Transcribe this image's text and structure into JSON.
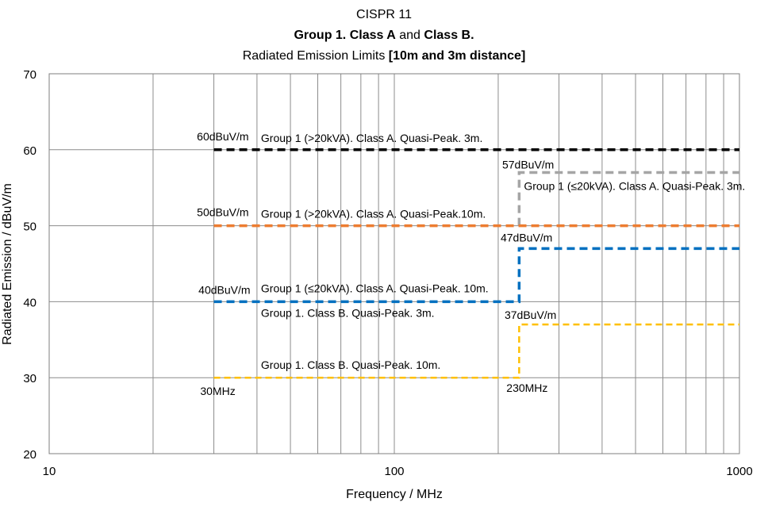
{
  "chart_data": {
    "type": "line",
    "title_lines": [
      [
        {
          "text": "CISPR 11",
          "bold": false
        }
      ],
      [
        {
          "text": "Group 1. Class A",
          "bold": true
        },
        {
          "text": " and ",
          "bold": false
        },
        {
          "text": "Class B.",
          "bold": true
        }
      ],
      [
        {
          "text": "Radiated Emission Limits ",
          "bold": false
        },
        {
          "text": "[10m and 3m distance]",
          "bold": true
        }
      ]
    ],
    "xlabel": "Frequency / MHz",
    "ylabel": "Radiated Emission / dBuV/m",
    "x_scale": "log",
    "xlim": [
      10,
      1000
    ],
    "ylim": [
      20,
      70
    ],
    "x_ticks": [
      10,
      100,
      1000
    ],
    "y_ticks": [
      20,
      30,
      40,
      50,
      60,
      70
    ],
    "grid": true,
    "series": [
      {
        "color": "#000000",
        "width": 3.5,
        "dash": "10,6",
        "points": [
          [
            30,
            60
          ],
          [
            1000,
            60
          ]
        ]
      },
      {
        "color": "#a5a5a5",
        "width": 3.5,
        "dash": "10,6",
        "points": [
          [
            230,
            50
          ],
          [
            230,
            57
          ],
          [
            1000,
            57
          ]
        ]
      },
      {
        "color": "#ed7d31",
        "width": 3.5,
        "dash": "10,6",
        "points": [
          [
            30,
            50
          ],
          [
            1000,
            50
          ]
        ]
      },
      {
        "color": "#0070c0",
        "width": 3.5,
        "dash": "10,6",
        "points": [
          [
            30,
            40
          ],
          [
            230,
            40
          ],
          [
            230,
            47
          ],
          [
            1000,
            47
          ]
        ]
      },
      {
        "color": "#ffc000",
        "width": 2.5,
        "dash": "8,5",
        "points": [
          [
            30,
            30
          ],
          [
            230,
            30
          ],
          [
            230,
            37
          ],
          [
            1000,
            37
          ]
        ]
      }
    ],
    "annotations": [
      {
        "text": "60dBuV/m",
        "x": 30,
        "y": 60,
        "align": "end",
        "dy": -12,
        "dx": 44
      },
      {
        "text": "Group 1 (>20kVA). Class A. Quasi-Peak. 3m.",
        "x": 40,
        "y": 60,
        "align": "start",
        "dy": -10,
        "dx": 5
      },
      {
        "text": "57dBuV/m",
        "x": 230,
        "y": 57,
        "align": "end",
        "dy": -5,
        "dx": 44
      },
      {
        "text": "Group 1 (≤20kVA). Class A. Quasi-Peak. 3m.",
        "x": 230,
        "y": 57,
        "align": "start",
        "dy": 22,
        "dx": 6
      },
      {
        "text": "50dBuV/m",
        "x": 30,
        "y": 50,
        "align": "end",
        "dy": -12,
        "dx": 44
      },
      {
        "text": "Group 1 (>20kVA). Class A. Quasi-Peak.10m.",
        "x": 40,
        "y": 50,
        "align": "start",
        "dy": -10,
        "dx": 5
      },
      {
        "text": "47dBuV/m",
        "x": 230,
        "y": 47,
        "align": "end",
        "dy": -9,
        "dx": 42
      },
      {
        "text": "40dBuV/m",
        "x": 30,
        "y": 40,
        "align": "end",
        "dy": -10,
        "dx": 46
      },
      {
        "text": "Group 1 (≤20kVA). Class A. Quasi-Peak. 10m.",
        "x": 40,
        "y": 40,
        "align": "start",
        "dy": -12,
        "dx": 5
      },
      {
        "text": "Group 1. Class B. Quasi-Peak. 3m.",
        "x": 40,
        "y": 40,
        "align": "start",
        "dy": 19,
        "dx": 5
      },
      {
        "text": "37dBuV/m",
        "x": 230,
        "y": 37,
        "align": "end",
        "dy": -7,
        "dx": 47
      },
      {
        "text": "Group 1. Class B. Quasi-Peak. 10m.",
        "x": 40,
        "y": 30,
        "align": "start",
        "dy": -11,
        "dx": 5
      },
      {
        "text": "30MHz",
        "x": 30,
        "y": 30,
        "align": "middle",
        "dy": 22,
        "dx": 5
      },
      {
        "text": "230MHz",
        "x": 230,
        "y": 30,
        "align": "middle",
        "dy": 18,
        "dx": 10
      }
    ]
  }
}
